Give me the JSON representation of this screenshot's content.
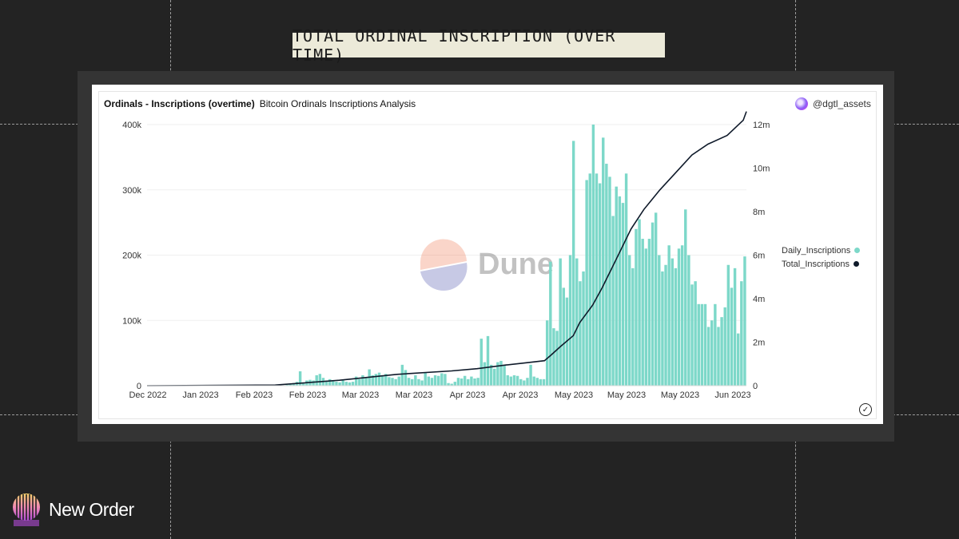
{
  "slide_title": "TOTAL ORDINAL INSCRIPTION (OVER TIME)",
  "card": {
    "title": "Ordinals - Inscriptions (overtime)",
    "subtitle": "Bitcoin Ordinals Inscriptions Analysis",
    "author": "@dgtl_assets",
    "watermark": "Dune"
  },
  "brand": {
    "name": "New Order"
  },
  "colors": {
    "background": "#232323",
    "bar": "#7dd8c9",
    "line": "#0f1a2a",
    "title_bg": "#ecead9"
  },
  "chart_data": {
    "type": "bar+line",
    "x_tick_labels": [
      "Dec 2022",
      "Jan 2023",
      "Feb 2023",
      "Feb 2023",
      "Mar 2023",
      "Mar 2023",
      "Apr 2023",
      "Apr 2023",
      "May 2023",
      "May 2023",
      "May 2023",
      "Jun 2023"
    ],
    "y_left": {
      "ticks": [
        "0",
        "100k",
        "200k",
        "300k",
        "400k"
      ],
      "min": 0,
      "max": 400000
    },
    "y_right": {
      "ticks": [
        "0",
        "2m",
        "4m",
        "6m",
        "8m",
        "10m",
        "12m"
      ],
      "min": 0,
      "max": 12000000
    },
    "grid": true,
    "legend_position": "right",
    "series": [
      {
        "name": "Daily_Inscriptions",
        "axis": "left",
        "kind": "bar",
        "values": [
          0,
          0,
          0,
          0,
          0,
          0,
          0,
          0,
          0,
          0,
          0,
          0,
          0,
          0,
          0,
          0,
          0,
          0,
          0,
          0,
          0,
          0,
          0,
          0,
          0,
          0,
          0,
          0,
          0,
          0,
          0,
          0,
          0,
          0,
          0,
          0,
          0,
          0,
          0,
          0,
          200,
          600,
          1500,
          2500,
          4000,
          6000,
          22000,
          5000,
          8000,
          9000,
          8000,
          16000,
          18000,
          12000,
          8000,
          10000,
          7000,
          6000,
          5000,
          8000,
          6000,
          5000,
          6000,
          14000,
          10000,
          16000,
          12000,
          25000,
          16000,
          18000,
          20000,
          16000,
          18000,
          13000,
          12000,
          10000,
          14000,
          32000,
          24000,
          12000,
          10000,
          16000,
          10000,
          8000,
          20000,
          14000,
          12000,
          16000,
          15000,
          19000,
          18000,
          4000,
          3000,
          6000,
          12000,
          11000,
          15000,
          10000,
          14000,
          11000,
          12000,
          72000,
          36000,
          76000,
          32000,
          26000,
          36000,
          38000,
          32000,
          16000,
          14000,
          16000,
          15000,
          10000,
          8000,
          12000,
          32000,
          14000,
          12000,
          10000,
          10000,
          100000,
          190000,
          88000,
          84000,
          195000,
          150000,
          135000,
          200000,
          375000,
          195000,
          160000,
          175000,
          315000,
          325000,
          400000,
          325000,
          310000,
          380000,
          340000,
          320000,
          260000,
          305000,
          290000,
          280000,
          325000,
          200000,
          180000,
          240000,
          255000,
          225000,
          210000,
          225000,
          250000,
          265000,
          200000,
          175000,
          185000,
          215000,
          195000,
          180000,
          210000,
          215000,
          270000,
          200000,
          155000,
          160000,
          125000,
          125000,
          125000,
          90000,
          100000,
          125000,
          90000,
          105000,
          120000,
          185000,
          150000,
          180000,
          80000,
          160000,
          198000
        ]
      },
      {
        "name": "Total_Inscriptions",
        "axis": "right",
        "kind": "line",
        "points": [
          [
            0,
            0
          ],
          [
            40,
            30000
          ],
          [
            60,
            250000
          ],
          [
            78,
            520000
          ],
          [
            95,
            680000
          ],
          [
            103,
            780000
          ],
          [
            112,
            950000
          ],
          [
            118,
            1050000
          ],
          [
            124,
            1150000
          ],
          [
            126,
            1400000
          ],
          [
            129,
            1800000
          ],
          [
            133,
            2300000
          ],
          [
            135,
            2900000
          ],
          [
            139,
            3700000
          ],
          [
            142,
            4500000
          ],
          [
            146,
            5700000
          ],
          [
            151,
            7200000
          ],
          [
            155,
            8100000
          ],
          [
            160,
            9000000
          ],
          [
            165,
            9800000
          ],
          [
            170,
            10600000
          ],
          [
            175,
            11100000
          ],
          [
            181,
            11500000
          ],
          [
            186,
            12200000
          ],
          [
            187,
            12600000
          ]
        ],
        "x_extent": 187
      }
    ]
  }
}
